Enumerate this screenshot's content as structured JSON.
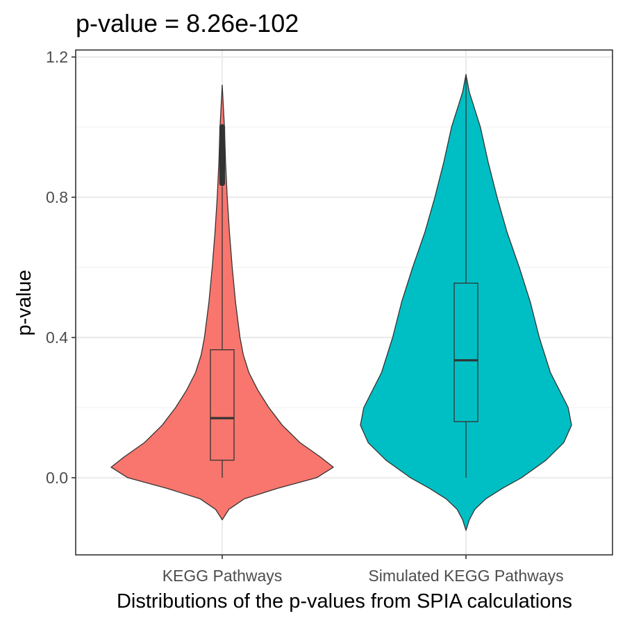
{
  "chart_data": {
    "type": "violin",
    "title": "p-value = 8.26e-102",
    "xlabel": "Distributions of the p-values from SPIA calculations",
    "ylabel": "p-value",
    "ylim": [
      -0.22,
      1.22
    ],
    "y_ticks": [
      0.0,
      0.4,
      0.8,
      1.2
    ],
    "y_tick_labels": [
      "0.0",
      "0.4",
      "0.8",
      "1.2"
    ],
    "categories": [
      "KEGG Pathways",
      "Simulated KEGG Pathways"
    ],
    "grid": true,
    "series": [
      {
        "category": "KEGG Pathways",
        "color": "#F8766D",
        "box": {
          "q1": 0.05,
          "median": 0.17,
          "q3": 0.365,
          "whisker_low": 0.0,
          "whisker_high": 0.83
        },
        "violin_min": -0.12,
        "violin_max": 1.12,
        "outlier_range": [
          0.84,
          1.0
        ],
        "density_profile": [
          [
            -0.12,
            0.0
          ],
          [
            -0.09,
            0.06
          ],
          [
            -0.06,
            0.2
          ],
          [
            -0.03,
            0.5
          ],
          [
            0.0,
            0.85
          ],
          [
            0.03,
            1.0
          ],
          [
            0.06,
            0.88
          ],
          [
            0.1,
            0.7
          ],
          [
            0.15,
            0.54
          ],
          [
            0.2,
            0.42
          ],
          [
            0.25,
            0.32
          ],
          [
            0.3,
            0.24
          ],
          [
            0.35,
            0.19
          ],
          [
            0.4,
            0.16
          ],
          [
            0.5,
            0.12
          ],
          [
            0.6,
            0.09
          ],
          [
            0.7,
            0.065
          ],
          [
            0.8,
            0.045
          ],
          [
            0.9,
            0.03
          ],
          [
            1.0,
            0.02
          ],
          [
            1.06,
            0.01
          ],
          [
            1.12,
            0.0
          ]
        ]
      },
      {
        "category": "Simulated KEGG Pathways",
        "color": "#00BFC4",
        "box": {
          "q1": 0.16,
          "median": 0.335,
          "q3": 0.555,
          "whisker_low": 0.0,
          "whisker_high": 1.15
        },
        "violin_min": -0.15,
        "violin_max": 1.15,
        "outlier_range": null,
        "density_profile": [
          [
            -0.15,
            0.0
          ],
          [
            -0.12,
            0.03
          ],
          [
            -0.09,
            0.08
          ],
          [
            -0.06,
            0.18
          ],
          [
            -0.03,
            0.33
          ],
          [
            0.0,
            0.5
          ],
          [
            0.05,
            0.72
          ],
          [
            0.1,
            0.88
          ],
          [
            0.15,
            0.95
          ],
          [
            0.2,
            0.92
          ],
          [
            0.25,
            0.84
          ],
          [
            0.3,
            0.76
          ],
          [
            0.4,
            0.66
          ],
          [
            0.5,
            0.58
          ],
          [
            0.6,
            0.48
          ],
          [
            0.7,
            0.37
          ],
          [
            0.8,
            0.28
          ],
          [
            0.9,
            0.2
          ],
          [
            1.0,
            0.13
          ],
          [
            1.05,
            0.08
          ],
          [
            1.1,
            0.03
          ],
          [
            1.15,
            0.0
          ]
        ]
      }
    ]
  }
}
